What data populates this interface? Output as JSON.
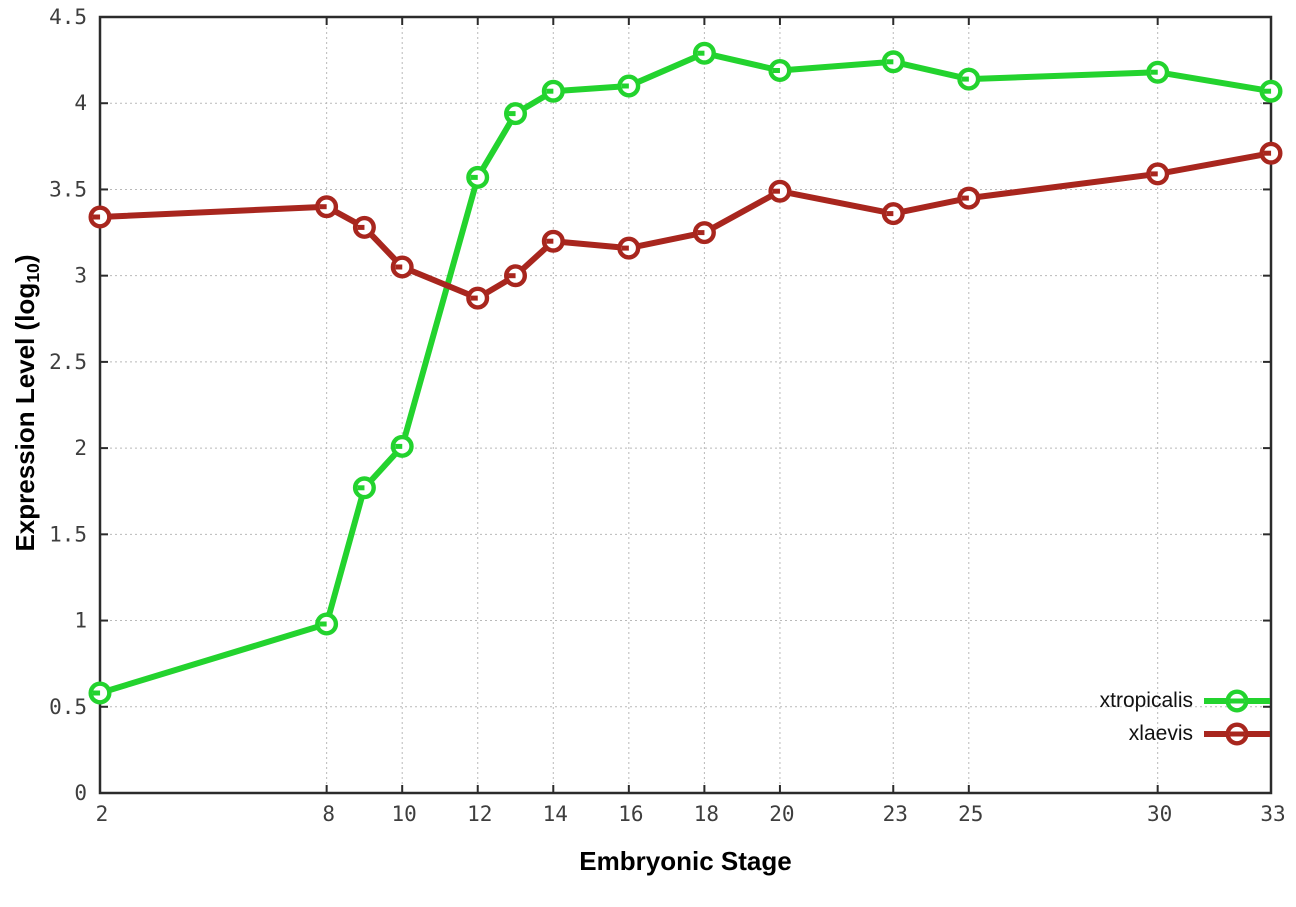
{
  "chart_data": {
    "type": "line",
    "title": "",
    "xlabel": "Embryonic Stage",
    "ylabel": "Expression Level (log10)",
    "ylabel_parts": {
      "prefix": "Expression Level (log",
      "sub": "10",
      "suffix": ")"
    },
    "x": [
      2,
      8,
      9,
      10,
      12,
      13,
      14,
      16,
      18,
      20,
      23,
      25,
      30,
      33
    ],
    "xlim": [
      2,
      33
    ],
    "ylim": [
      0,
      4.5
    ],
    "xticks": [
      2,
      8,
      10,
      12,
      14,
      16,
      18,
      20,
      23,
      25,
      30,
      33
    ],
    "xtick_labels": [
      "2",
      "8",
      "10",
      "12",
      "14",
      "16",
      "18",
      "20",
      "23",
      "25",
      "30",
      "33"
    ],
    "yticks": [
      0,
      0.5,
      1,
      1.5,
      2,
      2.5,
      3,
      3.5,
      4,
      4.5
    ],
    "ytick_labels": [
      "0",
      "0.5",
      "1",
      "1.5",
      "2",
      "2.5",
      "3",
      "3.5",
      "4",
      "4.5"
    ],
    "grid": true,
    "legend_position": "bottom-right",
    "series": [
      {
        "name": "xtropicalis",
        "color": "#23d32e",
        "values": [
          0.58,
          0.98,
          1.77,
          2.01,
          3.57,
          3.94,
          4.07,
          4.1,
          4.29,
          4.19,
          4.24,
          4.14,
          4.18,
          4.07
        ]
      },
      {
        "name": "xlaevis",
        "color": "#a8261e",
        "values": [
          3.34,
          3.4,
          3.28,
          3.05,
          2.87,
          3.0,
          3.2,
          3.16,
          3.25,
          3.49,
          3.36,
          3.45,
          3.59,
          3.71
        ]
      }
    ],
    "axis_color": "#2b2b2b",
    "grid_color": "#b9b9b9",
    "tick_label_color": "#3e3e3e"
  }
}
